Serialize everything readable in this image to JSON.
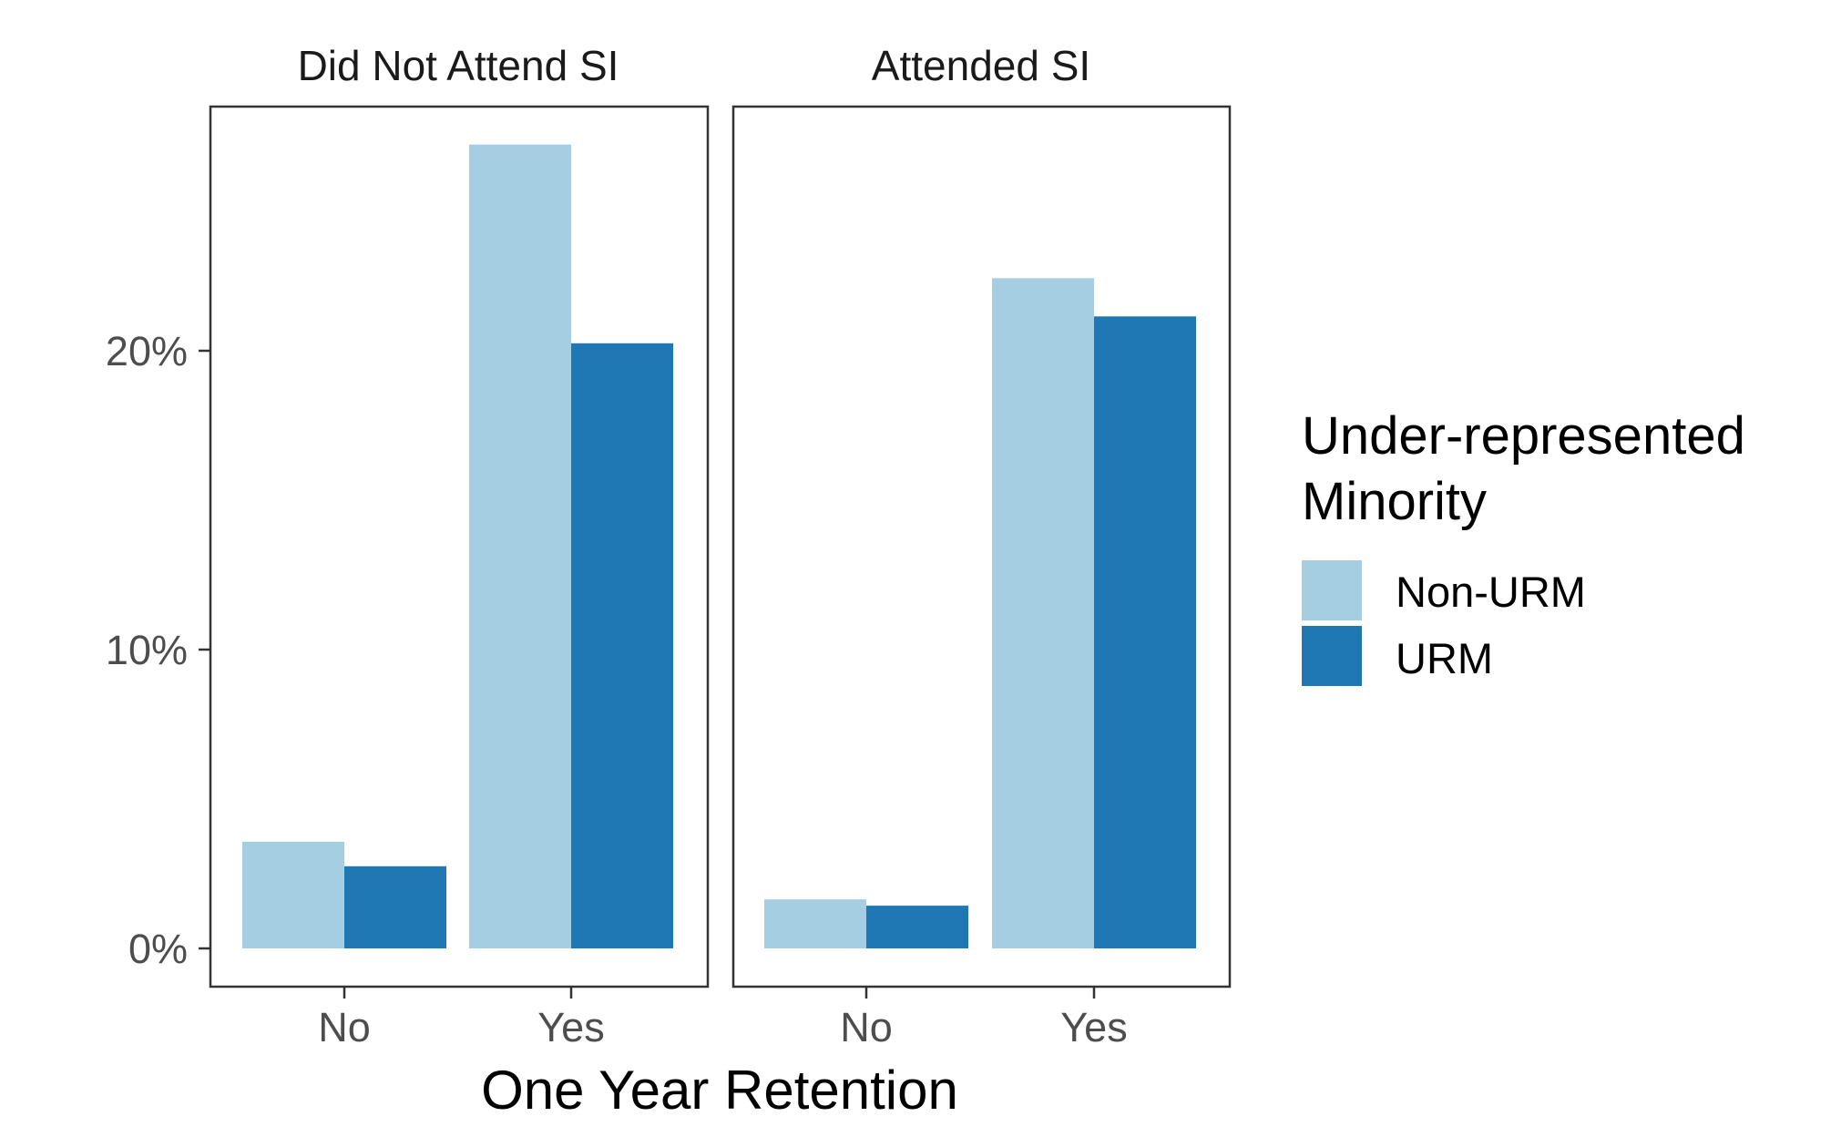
{
  "chart_data": {
    "type": "bar",
    "xlabel": "One Year Retention",
    "ylabel": "",
    "ylim": [
      0,
      0.283
    ],
    "y_ticks": [
      {
        "value": 0,
        "label": "0%"
      },
      {
        "value": 0.1,
        "label": "10%"
      },
      {
        "value": 0.2,
        "label": "20%"
      }
    ],
    "categories": [
      "No",
      "Yes"
    ],
    "legend": {
      "title_line1": "Under-represented",
      "title_line2": "Minority",
      "placement": "right",
      "items": [
        {
          "name": "Non-URM",
          "color": "#a6cee3"
        },
        {
          "name": "URM",
          "color": "#1f78b4"
        }
      ]
    },
    "panels": [
      {
        "title": "Did Not Attend SI",
        "series": [
          {
            "name": "Non-URM",
            "values": [
              0.0357,
              0.269
            ]
          },
          {
            "name": "URM",
            "values": [
              0.0275,
              0.2025
            ]
          }
        ]
      },
      {
        "title": "Attended SI",
        "series": [
          {
            "name": "Non-URM",
            "values": [
              0.0164,
              0.2243
            ]
          },
          {
            "name": "URM",
            "values": [
              0.0143,
              0.2115
            ]
          }
        ]
      }
    ],
    "grid": false
  }
}
